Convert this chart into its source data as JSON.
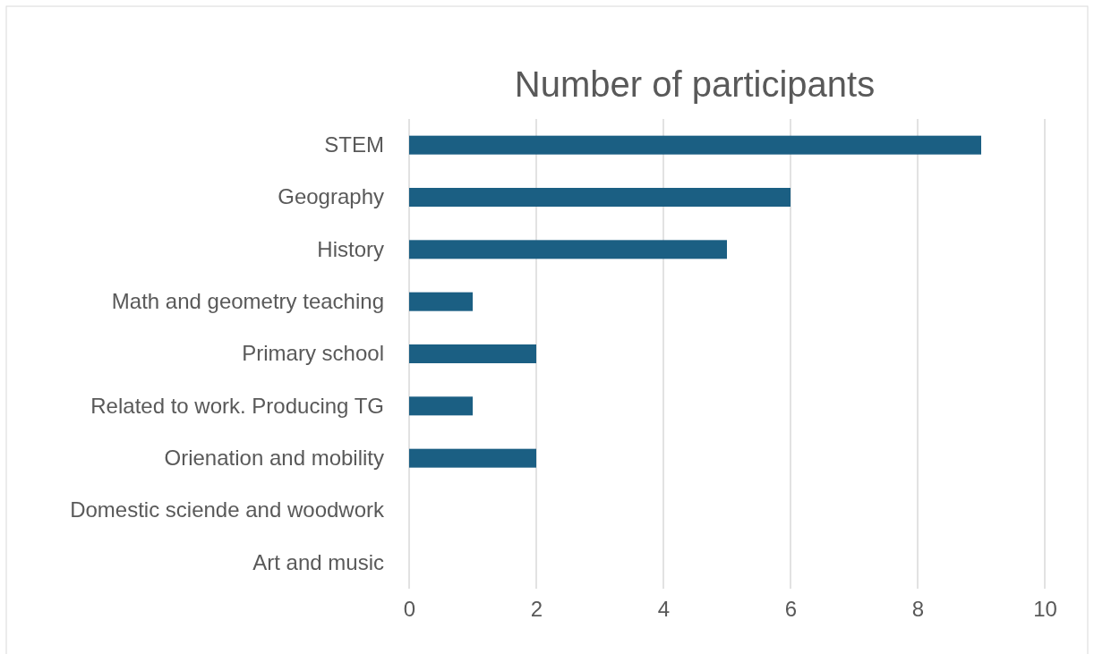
{
  "chart_data": {
    "type": "bar",
    "orientation": "horizontal",
    "title": "Number of participants",
    "categories": [
      "STEM",
      "Geography",
      "History",
      "Math and geometry teaching",
      "Primary school",
      "Related to work. Producing TG",
      "Orienation and mobility",
      "Domestic sciende and woodwork",
      "Art and music"
    ],
    "values": [
      9,
      6,
      5,
      1,
      2,
      1,
      2,
      0,
      0
    ],
    "color": "#1b5f83",
    "xlim": [
      0,
      10
    ],
    "xticks": [
      0,
      2,
      4,
      6,
      8,
      10
    ],
    "grid": "x"
  }
}
